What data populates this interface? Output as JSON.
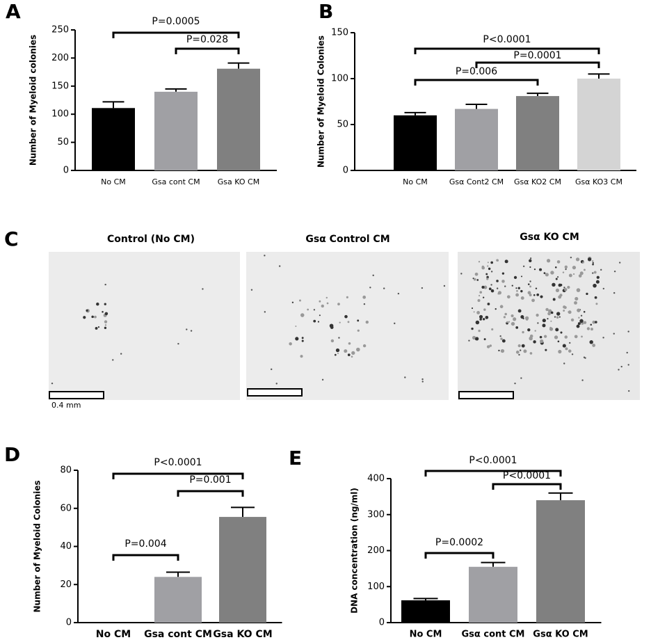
{
  "chart_data": [
    {
      "type": "bar",
      "panel_label": "A",
      "ylabel": "Number of Myeloid colonies",
      "categories": [
        "No CM",
        "Gsa cont CM",
        "Gsa KO CM"
      ],
      "series": [
        {
          "values": [
            111,
            140,
            181
          ],
          "errors": [
            11,
            5,
            10
          ]
        }
      ],
      "colors": [
        "#000000",
        "#a0a0a4",
        "#808080"
      ],
      "ylim": [
        0,
        250
      ],
      "yticks": [
        0,
        50,
        100,
        150,
        200,
        250
      ],
      "annotations": [
        "P=0.0005",
        "P=0.028"
      ]
    },
    {
      "type": "bar",
      "panel_label": "B",
      "ylabel": "Number of Myeloid Colonies",
      "categories": [
        "No CM",
        "Gsα Cont2 CM",
        "Gsα KO2 CM",
        "Gsα KO3 CM"
      ],
      "series": [
        {
          "values": [
            60,
            67,
            81,
            100
          ],
          "errors": [
            3,
            5,
            3,
            5
          ]
        }
      ],
      "colors": [
        "#000000",
        "#a0a0a4",
        "#808080",
        "#d4d4d4"
      ],
      "ylim": [
        0,
        150
      ],
      "yticks": [
        0,
        50,
        100,
        150
      ],
      "annotations": [
        "P<0.0001",
        "P=0.0001",
        "P=0.006"
      ]
    },
    {
      "type": "bar",
      "panel_label": "D",
      "ylabel": "Number of Myeloid Colonies",
      "categories": [
        "No CM",
        "Gsa cont CM",
        "Gsa KO CM"
      ],
      "series": [
        {
          "values": [
            0,
            24,
            55.5
          ],
          "errors": [
            null,
            2.5,
            5
          ]
        }
      ],
      "colors": [
        "#000000",
        "#a0a0a4",
        "#808080"
      ],
      "ylim": [
        0,
        80
      ],
      "yticks": [
        0,
        20,
        40,
        60,
        80
      ],
      "annotations": [
        "P<0.0001",
        "P=0.001",
        "P=0.004"
      ]
    },
    {
      "type": "bar",
      "panel_label": "E",
      "ylabel": "DNA concentration (ng/ml)",
      "categories": [
        "No CM",
        "Gsα cont CM",
        "Gsα KO CM"
      ],
      "series": [
        {
          "values": [
            62,
            155,
            340
          ],
          "errors": [
            5,
            12,
            20
          ]
        }
      ],
      "colors": [
        "#000000",
        "#a0a0a4",
        "#808080"
      ],
      "ylim": [
        0,
        400
      ],
      "yticks": [
        0,
        100,
        200,
        300,
        400
      ],
      "annotations": [
        "P<0.0001",
        "P<0.0001",
        "P=0.0002"
      ]
    }
  ],
  "figure_c": {
    "panel_label": "C",
    "titles": [
      "Control (No CM)",
      "Gsα Control CM",
      "Gsα KO CM"
    ],
    "scale_label": "0.4 mm"
  }
}
